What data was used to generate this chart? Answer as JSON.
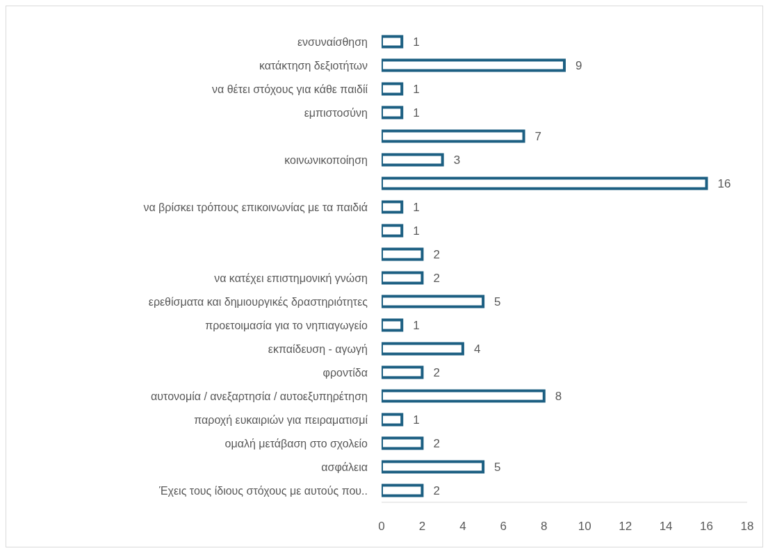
{
  "chart_data": {
    "type": "bar",
    "orientation": "horizontal",
    "categories": [
      "ενσυναίσθηση",
      "κατάκτηση δεξιοτήτων",
      "να θέτει στόχους για κάθε παιδίί",
      "εμπιστοσύνη",
      null,
      "κοινωνικοποίηση",
      null,
      "να βρίσκει τρόπους επικοινωνίας με τα παιδιά",
      null,
      null,
      "να κατέχει επιστημονική γνώση",
      "ερεθίσματα και δημιουργικές δραστηριότητες",
      "προετοιμασία για το νηπιαγωγείο",
      "εκπαίδευση - αγωγή",
      "φροντίδα",
      "αυτονομία / ανεξαρτησία / αυτοεξυπηρέτηση",
      "παροχή ευκαιριών για πειραματισμί",
      "ομαλή μετάβαση στο σχολείο",
      "ασφάλεια",
      "Έχεις τους ίδιους στόχους με αυτούς που.."
    ],
    "values": [
      1,
      9,
      1,
      1,
      7,
      3,
      16,
      1,
      1,
      2,
      2,
      5,
      1,
      4,
      2,
      8,
      1,
      2,
      5,
      2
    ],
    "color": "#1c5f82",
    "xlim": [
      0,
      18
    ],
    "xticks": [
      0,
      2,
      4,
      6,
      8,
      10,
      12,
      14,
      16,
      18
    ],
    "data_labels": true,
    "grid": false
  }
}
